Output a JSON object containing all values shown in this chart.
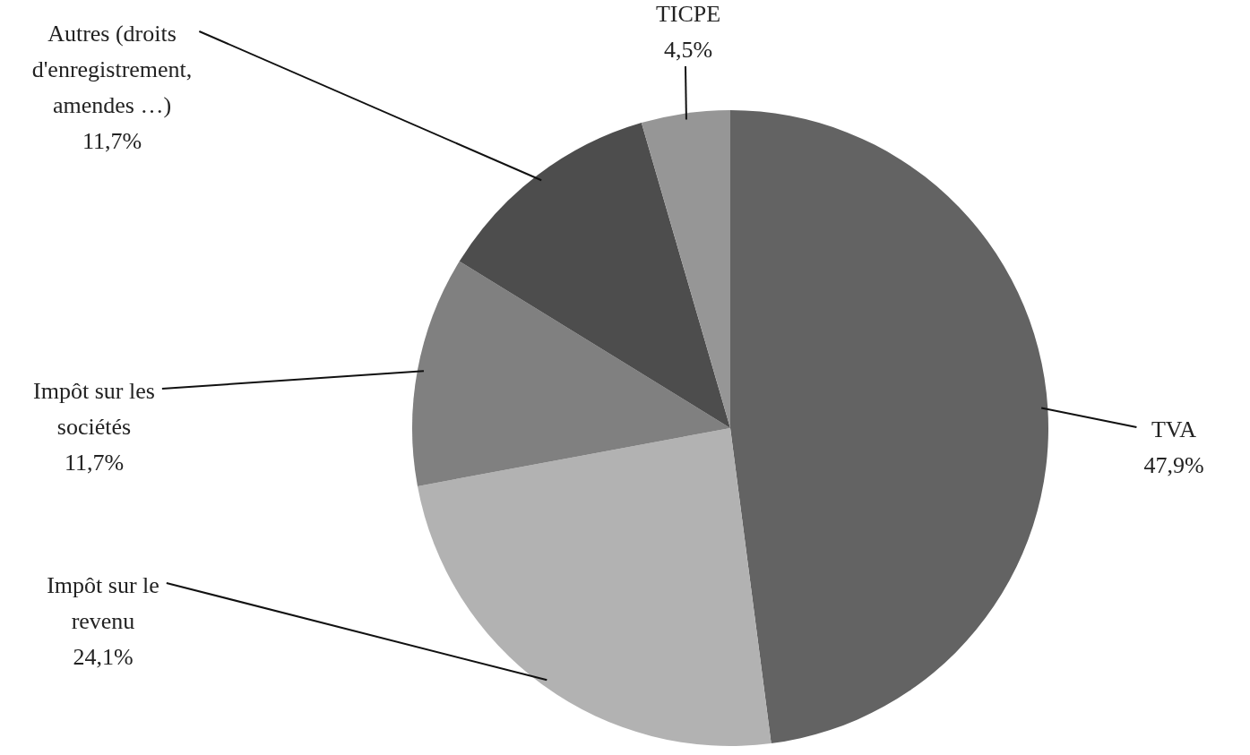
{
  "chart_data": {
    "type": "pie",
    "categories": [
      "TVA",
      "Impôt sur le revenu",
      "Impôt sur les sociétés",
      "Autres (droits d'enregistrement, amendes …)",
      "TICPE"
    ],
    "values": [
      47.9,
      24.1,
      11.7,
      11.7,
      4.5
    ],
    "value_labels": [
      "47,9%",
      "24,1%",
      "11,7%",
      "11,7%",
      "4,5%"
    ],
    "colors": [
      "#636363",
      "#b2b2b2",
      "#808080",
      "#4d4d4d",
      "#969696"
    ]
  }
}
